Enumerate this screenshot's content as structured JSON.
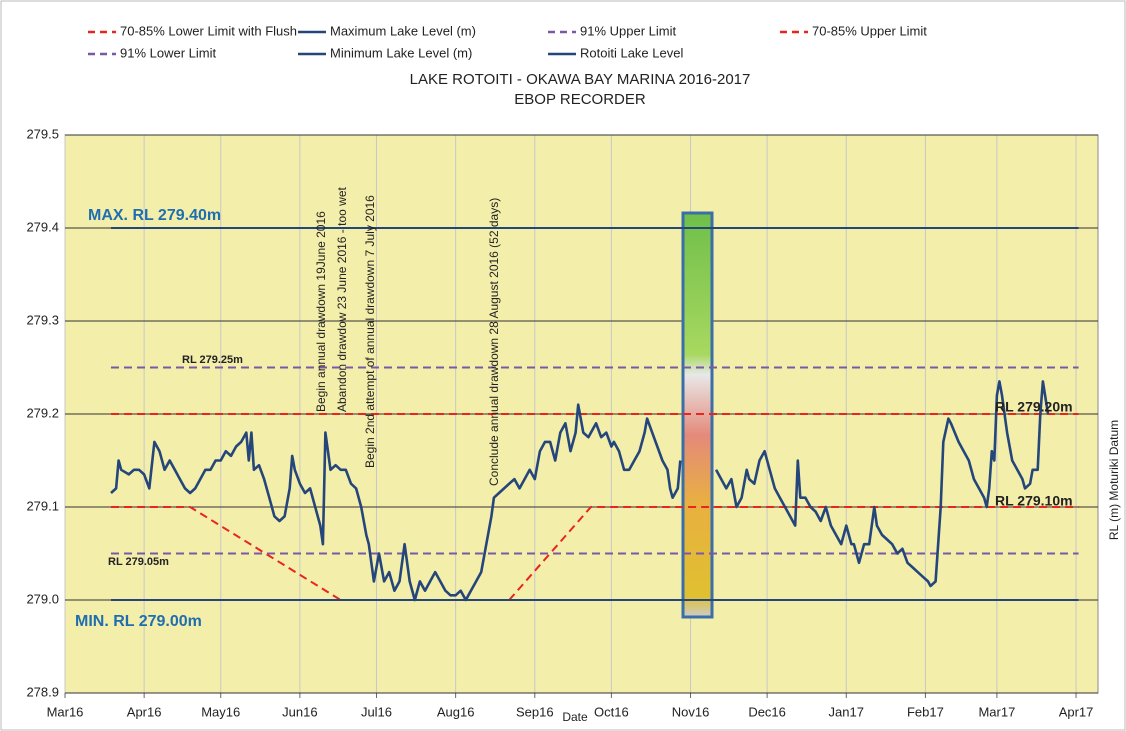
{
  "chart_data": {
    "type": "line",
    "title": "LAKE ROTOITI - OKAWA BAY MARINA 2016-2017",
    "subtitle": "EBOP RECORDER",
    "x_label": "Date",
    "y_label": "RL (m) Moturiki  Datum",
    "xlim": [
      0,
      404.6
    ],
    "xticks": [
      {
        "value": 0,
        "label": "Mar16"
      },
      {
        "value": 31,
        "label": "Apr16"
      },
      {
        "value": 61,
        "label": "May16"
      },
      {
        "value": 92,
        "label": "Jun16"
      },
      {
        "value": 122,
        "label": "Jul16"
      },
      {
        "value": 153,
        "label": "Aug16"
      },
      {
        "value": 184,
        "label": "Sep16"
      },
      {
        "value": 214,
        "label": "Oct16"
      },
      {
        "value": 245,
        "label": "Nov16"
      },
      {
        "value": 275,
        "label": "Dec16"
      },
      {
        "value": 306,
        "label": "Jan17"
      },
      {
        "value": 337,
        "label": "Feb17"
      },
      {
        "value": 365,
        "label": "Mar17"
      },
      {
        "value": 396,
        "label": "Apr17"
      }
    ],
    "ylim": [
      278.9,
      279.5
    ],
    "yticks": [
      278.9,
      {
        "value": 279,
        "label": "279.0"
      },
      279.1,
      279.2,
      279.3,
      279.4,
      279.5
    ],
    "grid": true,
    "legend": "top",
    "series": [
      {
        "name": "70-85% Lower Limit with Flush",
        "color": "#e8251f",
        "dashed": true,
        "x": [
          18,
          49,
          108,
          null,
          174,
          206,
          397
        ],
        "values": [
          279.1,
          279.1,
          279.0,
          null,
          279.0,
          279.1,
          279.1
        ]
      },
      {
        "name": "Maximum Lake Level (m)",
        "color": "#24467a",
        "dashed": false,
        "x": [
          18,
          397
        ],
        "values": [
          279.4,
          279.4
        ]
      },
      {
        "name": "91% Upper Limit",
        "color": "#7b58a6",
        "dashed": true,
        "x": [
          18,
          397
        ],
        "values": [
          279.25,
          279.25
        ]
      },
      {
        "name": "70-85% Upper Limit",
        "color": "#e8251f",
        "dashed": true,
        "x": [
          18,
          397
        ],
        "values": [
          279.2,
          279.2
        ]
      },
      {
        "name": "91% Lower Limit",
        "color": "#7b58a6",
        "dashed": true,
        "x": [
          18,
          397
        ],
        "values": [
          279.05,
          279.05
        ]
      },
      {
        "name": "Minimum Lake Level (m)",
        "color": "#24467a",
        "dashed": false,
        "x": [
          18,
          397
        ],
        "values": [
          279.0,
          279.0
        ]
      },
      {
        "name": "Rotoiti Lake Level",
        "color": "#24467a",
        "dashed": false,
        "x": [
          18,
          20,
          21,
          22,
          25,
          27,
          29,
          31,
          33,
          35,
          37,
          39,
          41,
          43,
          45,
          47,
          49,
          51,
          53,
          55,
          57,
          59,
          61,
          63,
          65,
          67,
          69,
          71,
          72,
          73,
          74,
          76,
          78,
          80,
          82,
          84,
          86,
          88,
          89,
          90,
          92,
          94,
          96,
          98,
          100,
          101,
          102,
          104,
          106,
          108,
          110,
          112,
          114,
          116,
          118,
          119,
          121,
          123,
          125,
          127,
          129,
          131,
          133,
          135,
          137,
          139,
          141,
          143,
          145,
          147,
          149,
          151,
          153,
          155,
          157,
          159,
          161,
          163,
          165,
          167,
          168,
          170,
          172,
          174,
          176,
          178,
          180,
          182,
          184,
          186,
          188,
          190,
          192,
          194,
          196,
          198,
          200,
          201,
          203,
          205,
          206,
          208,
          210,
          212,
          214,
          215,
          217,
          219,
          221,
          223,
          225,
          227,
          228,
          230,
          232,
          234,
          236,
          237,
          238,
          240,
          241,
          null,
          255,
          257,
          259,
          261,
          263,
          265,
          267,
          268,
          270,
          272,
          274,
          276,
          278,
          280,
          282,
          284,
          286,
          287,
          288,
          290,
          292,
          294,
          296,
          298,
          300,
          302,
          304,
          306,
          308,
          309,
          311,
          313,
          315,
          317,
          318,
          320,
          322,
          324,
          326,
          328,
          330,
          332,
          334,
          336,
          338,
          339,
          341,
          343,
          344,
          346,
          347,
          350,
          352,
          354,
          356,
          358,
          360,
          361,
          362,
          363,
          364,
          365,
          366,
          367,
          369,
          371,
          373,
          375,
          376,
          378,
          379,
          381,
          382,
          383,
          385
        ],
        "values": [
          279.115,
          279.12,
          279.15,
          279.14,
          279.135,
          279.14,
          279.14,
          279.135,
          279.12,
          279.17,
          279.16,
          279.14,
          279.15,
          279.14,
          279.13,
          279.12,
          279.115,
          279.12,
          279.13,
          279.14,
          279.14,
          279.15,
          279.15,
          279.16,
          279.155,
          279.165,
          279.17,
          279.18,
          279.15,
          279.18,
          279.14,
          279.145,
          279.13,
          279.11,
          279.09,
          279.085,
          279.09,
          279.12,
          279.155,
          279.14,
          279.125,
          279.115,
          279.12,
          279.1,
          279.08,
          279.06,
          279.18,
          279.14,
          279.145,
          279.14,
          279.14,
          279.125,
          279.12,
          279.1,
          279.07,
          279.06,
          279.02,
          279.05,
          279.02,
          279.03,
          279.01,
          279.02,
          279.06,
          279.02,
          279.0,
          279.02,
          279.01,
          279.02,
          279.03,
          279.02,
          279.01,
          279.005,
          279.005,
          279.01,
          279.0,
          279.01,
          279.02,
          279.03,
          279.06,
          279.09,
          279.11,
          279.115,
          279.12,
          279.125,
          279.13,
          279.12,
          279.13,
          279.14,
          279.13,
          279.16,
          279.17,
          279.17,
          279.15,
          279.18,
          279.19,
          279.16,
          279.18,
          279.21,
          279.18,
          279.175,
          279.18,
          279.19,
          279.175,
          279.18,
          279.165,
          279.17,
          279.16,
          279.14,
          279.14,
          279.15,
          279.16,
          279.18,
          279.195,
          279.18,
          279.165,
          279.15,
          279.14,
          279.12,
          279.11,
          279.12,
          279.15,
          null,
          279.14,
          279.13,
          279.12,
          279.13,
          279.1,
          279.11,
          279.14,
          279.13,
          279.125,
          279.15,
          279.16,
          279.14,
          279.12,
          279.11,
          279.1,
          279.09,
          279.08,
          279.15,
          279.11,
          279.11,
          279.1,
          279.095,
          279.085,
          279.1,
          279.08,
          279.07,
          279.06,
          279.08,
          279.06,
          279.06,
          279.04,
          279.06,
          279.06,
          279.1,
          279.08,
          279.07,
          279.065,
          279.06,
          279.05,
          279.055,
          279.04,
          279.035,
          279.03,
          279.025,
          279.02,
          279.015,
          279.02,
          279.1,
          279.17,
          279.195,
          279.19,
          279.17,
          279.16,
          279.15,
          279.13,
          279.12,
          279.11,
          279.1,
          279.12,
          279.16,
          279.15,
          279.22,
          279.235,
          279.22,
          279.18,
          279.15,
          279.14,
          279.13,
          279.12,
          279.125,
          279.14,
          279.14,
          279.2,
          279.235,
          279.2
        ]
      }
    ],
    "annotations": [
      "MAX. RL 279.40m",
      "MIN. RL 279.00m",
      "RL 279.25m",
      "RL 279.05m",
      "RL 279.20m",
      "RL 279.10m",
      "Begin annual drawdown 19June 2016",
      "Abandon drawdow  23 June 2016 - too wet",
      "Begin 2nd attempt of annual drawdown 7 July 2016",
      "Conclude annual drawdown 28 August 2016 (52 days)"
    ]
  }
}
